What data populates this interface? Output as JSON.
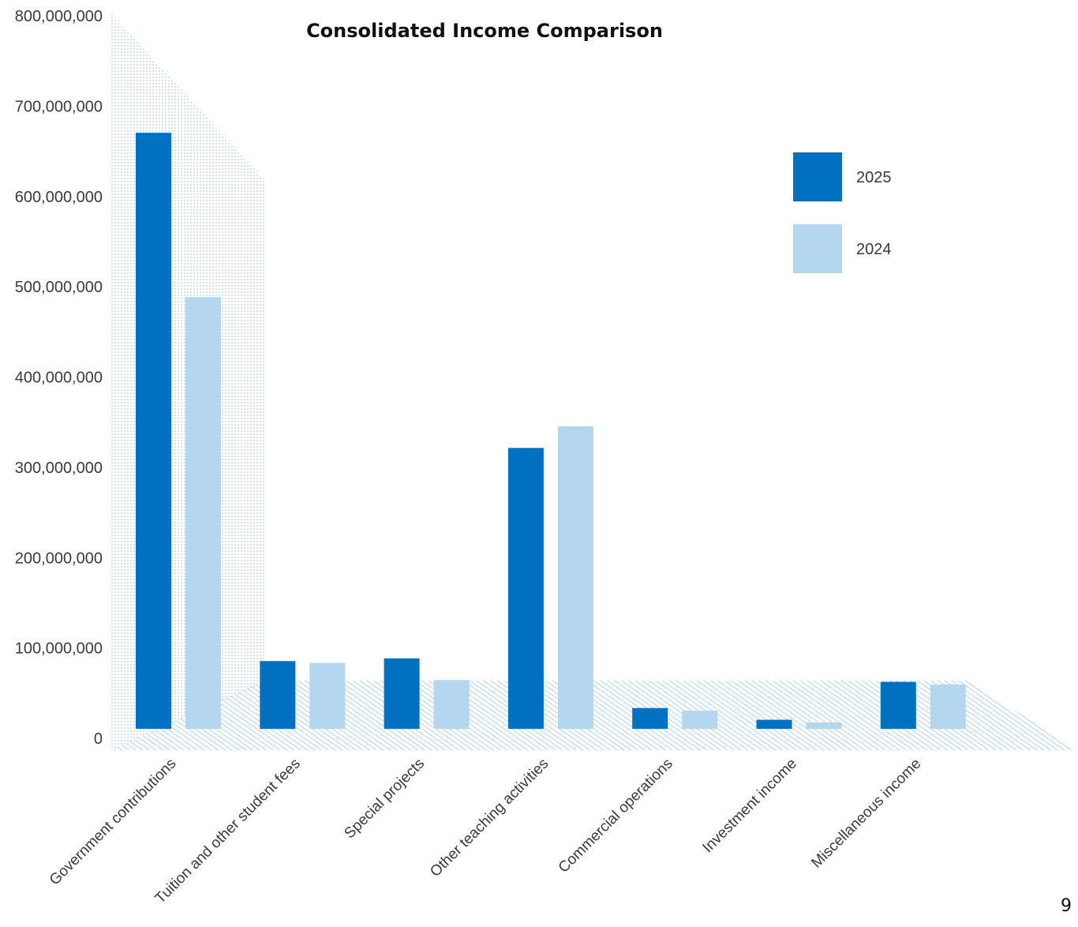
{
  "chart_data": {
    "type": "bar",
    "title": "Consolidated Income Comparison",
    "categories": [
      "Government contributions",
      "Tuition and other student fees",
      "Special projects",
      "Other teaching activities",
      "Commercial operations",
      "Investment income",
      "Miscellaneous income"
    ],
    "series": [
      {
        "name": "2025",
        "color": "#0070c0",
        "values": [
          660000000,
          75000000,
          78000000,
          311000000,
          23000000,
          10000000,
          52000000
        ]
      },
      {
        "name": "2024",
        "color": "#b4d6ee",
        "values": [
          478000000,
          73000000,
          54000000,
          335000000,
          20000000,
          7000000,
          49000000
        ]
      }
    ],
    "yticks": [
      "0",
      "100,000,000",
      "200,000,000",
      "300,000,000",
      "400,000,000",
      "500,000,000",
      "600,000,000",
      "700,000,000",
      "800,000,000"
    ],
    "ylim": [
      0,
      800000000
    ],
    "legend_position": "top-right",
    "grid": false
  },
  "page_number": "9"
}
